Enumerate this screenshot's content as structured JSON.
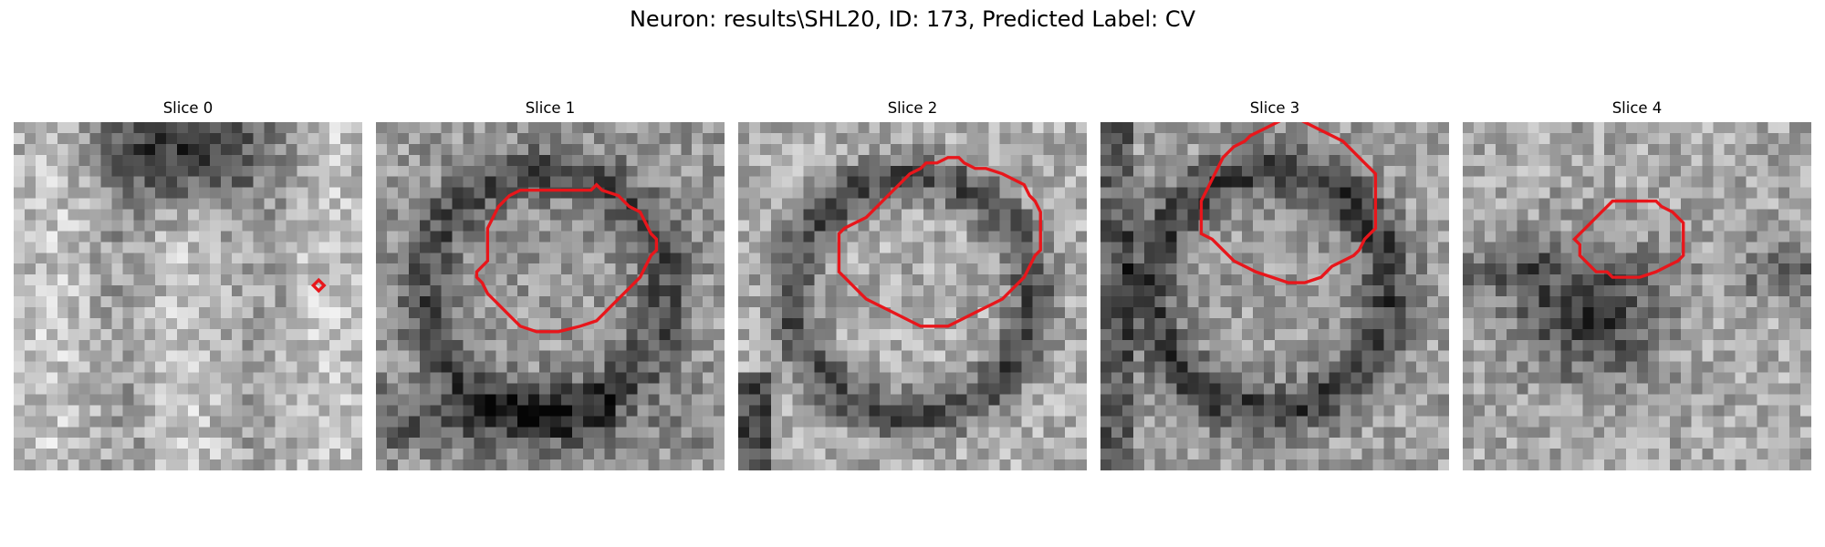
{
  "figure": {
    "title": "Neuron: results\\SHL20, ID: 173, Predicted Label: CV"
  },
  "contour_color": "#e8161b",
  "colormap": "gray",
  "panels": [
    {
      "title": "Slice 0",
      "seed": 11,
      "pattern": "blob-top",
      "contour": [
        [
          30.0,
          55.0
        ],
        [
          31.0,
          56.0
        ],
        [
          30.0,
          57.0
        ],
        [
          29.0,
          56.0
        ]
      ]
    },
    {
      "title": "Slice 1",
      "seed": 23,
      "pattern": "ring-left",
      "contour": [
        [
          28.5,
          18.5
        ],
        [
          29.5,
          19.5
        ],
        [
          31.5,
          20.5
        ],
        [
          33.5,
          22.5
        ],
        [
          35.5,
          24.5
        ],
        [
          37.5,
          26.5
        ],
        [
          38.5,
          29.5
        ],
        [
          38.5,
          33.5
        ],
        [
          37.5,
          37.5
        ],
        [
          36.5,
          40.5
        ],
        [
          35.5,
          41.5
        ],
        [
          33.5,
          43.5
        ],
        [
          30.5,
          46.5
        ],
        [
          28.5,
          48.5
        ],
        [
          26.5,
          49.5
        ],
        [
          24.5,
          50.5
        ],
        [
          23.5,
          51.5
        ],
        [
          21.5,
          51.5
        ],
        [
          20.5,
          50.5
        ],
        [
          18.5,
          49.5
        ],
        [
          16.5,
          48.5
        ],
        [
          15.5,
          46.5
        ],
        [
          13.5,
          44.5
        ],
        [
          12.5,
          41.5
        ],
        [
          11.5,
          40.5
        ],
        [
          12.5,
          39.5
        ],
        [
          12.5,
          37.5
        ],
        [
          12.5,
          33.5
        ],
        [
          12.5,
          26.5
        ],
        [
          13.5,
          24.5
        ],
        [
          15.5,
          22.5
        ],
        [
          17.5,
          21.5
        ],
        [
          19.5,
          20.5
        ],
        [
          22.5,
          20.5
        ],
        [
          25.5,
          20.5
        ],
        [
          26.5,
          19.5
        ],
        [
          27.5,
          18.5
        ]
      ]
    },
    {
      "title": "Slice 2",
      "seed": 37,
      "pattern": "ring-center",
      "contour": [
        [
          20.5,
          18.5
        ],
        [
          27.5,
          18.5
        ],
        [
          28.5,
          19.5
        ],
        [
          29.5,
          20.5
        ],
        [
          30.5,
          21.5
        ],
        [
          31.5,
          22.5
        ],
        [
          32.5,
          23.5
        ],
        [
          33.5,
          25.5
        ],
        [
          34.5,
          27.5
        ],
        [
          35.5,
          29.5
        ],
        [
          36.5,
          31.5
        ],
        [
          37.5,
          33.5
        ],
        [
          37.5,
          38.5
        ],
        [
          36.5,
          40.5
        ],
        [
          35.5,
          42.5
        ],
        [
          34.5,
          44.5
        ],
        [
          33.5,
          46.5
        ],
        [
          32.5,
          48.5
        ],
        [
          30.5,
          50.5
        ],
        [
          28.5,
          52.5
        ],
        [
          26.5,
          53.5
        ],
        [
          24.5,
          54.5
        ],
        [
          23.5,
          55.5
        ],
        [
          22.5,
          55.5
        ],
        [
          19.5,
          55.5
        ],
        [
          16.5,
          55.5
        ],
        [
          14.5,
          54.5
        ],
        [
          13.5,
          53.5
        ],
        [
          11.5,
          52.5
        ],
        [
          10.5,
          50.5
        ],
        [
          9.5,
          48.5
        ],
        [
          8.5,
          45.5
        ],
        [
          8.5,
          43.5
        ],
        [
          7.5,
          41.5
        ],
        [
          6.5,
          40.5
        ],
        [
          6.5,
          38.5
        ],
        [
          7.5,
          36.5
        ],
        [
          7.5,
          34.5
        ],
        [
          8.5,
          33.5
        ],
        [
          9.5,
          31.5
        ],
        [
          11.5,
          29.5
        ],
        [
          13.5,
          27.5
        ],
        [
          15.5,
          25.5
        ],
        [
          17.5,
          23.5
        ],
        [
          18.5,
          21.5
        ],
        [
          19.5,
          19.5
        ]
      ]
    },
    {
      "title": "Slice 3",
      "seed": 53,
      "pattern": "ring-right",
      "contour": [
        [
          15.5,
          18.5
        ],
        [
          20.5,
          18.5
        ],
        [
          21.5,
          20.5
        ],
        [
          22.5,
          21.5
        ],
        [
          23.5,
          22.5
        ],
        [
          24.5,
          23.5
        ],
        [
          25.5,
          24.5
        ],
        [
          26.5,
          26.5
        ],
        [
          27.5,
          28.5
        ],
        [
          28.5,
          31.5
        ],
        [
          29.5,
          34.5
        ],
        [
          29.5,
          37.5
        ],
        [
          28.5,
          40.5
        ],
        [
          26.5,
          42.5
        ],
        [
          25.5,
          44.5
        ],
        [
          24.5,
          46.5
        ],
        [
          23.5,
          47.5
        ],
        [
          21.5,
          48.5
        ],
        [
          20.5,
          49.5
        ],
        [
          19.5,
          50.5
        ],
        [
          14.5,
          50.5
        ],
        [
          9.5,
          50.5
        ],
        [
          8.5,
          49.5
        ],
        [
          7.5,
          48.5
        ],
        [
          6.5,
          47.5
        ],
        [
          5.5,
          46.5
        ],
        [
          4.5,
          45.5
        ],
        [
          3.5,
          44.5
        ],
        [
          2.5,
          42.5
        ],
        [
          1.5,
          40.5
        ],
        [
          0.5,
          38.5
        ],
        [
          -0.5,
          36.5
        ],
        [
          -0.5,
          33.5
        ],
        [
          0.5,
          31.5
        ],
        [
          1.5,
          29.5
        ],
        [
          2.5,
          27.5
        ],
        [
          3.5,
          26.5
        ],
        [
          4.5,
          24.5
        ],
        [
          6.5,
          22.5
        ],
        [
          8.5,
          21.5
        ],
        [
          10.5,
          20.5
        ],
        [
          12.5,
          19.5
        ],
        [
          14.5,
          18.5
        ]
      ]
    },
    {
      "title": "Slice 4",
      "seed": 71,
      "pattern": "dark-center",
      "contour": [
        [
          21.5,
          20.5
        ],
        [
          22.5,
          21.5
        ],
        [
          24.5,
          21.5
        ],
        [
          25.5,
          22.5
        ],
        [
          26.5,
          23.5
        ],
        [
          27.5,
          24.5
        ],
        [
          27.5,
          26.5
        ],
        [
          28.5,
          27.5
        ],
        [
          28.5,
          32.5
        ],
        [
          27.5,
          35.5
        ],
        [
          26.5,
          37.5
        ],
        [
          25.5,
          39.5
        ],
        [
          24.5,
          40.5
        ],
        [
          18.5,
          40.5
        ],
        [
          17.5,
          39.5
        ],
        [
          16.5,
          38.5
        ],
        [
          15.5,
          36.5
        ],
        [
          14.5,
          35.5
        ],
        [
          14.5,
          27.5
        ],
        [
          15.5,
          26.5
        ],
        [
          16.5,
          25.5
        ],
        [
          17.5,
          24.5
        ],
        [
          18.5,
          23.5
        ],
        [
          19.5,
          22.5
        ],
        [
          20.5,
          21.5
        ]
      ]
    }
  ]
}
